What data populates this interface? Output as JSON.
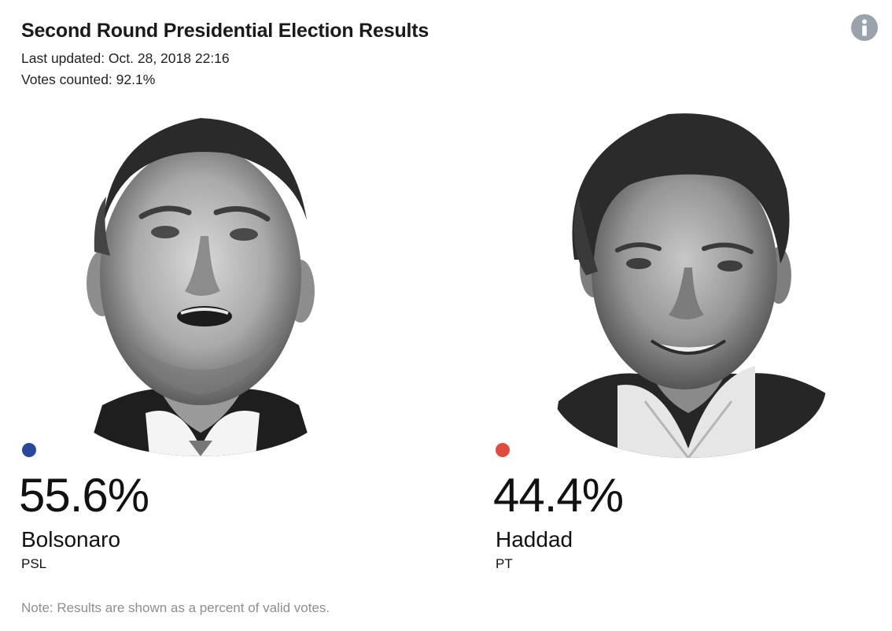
{
  "header": {
    "title": "Second Round Presidential Election Results",
    "last_updated": "Last updated: Oct. 28, 2018 22:16",
    "votes_counted": "Votes counted: 92.1%",
    "info_icon": "info-icon"
  },
  "candidates": [
    {
      "percent": "55.6%",
      "share": 55.6,
      "name": "Bolsonaro",
      "party": "PSL",
      "color": "#28489b",
      "portrait": "candidate-portrait-bolsonaro"
    },
    {
      "percent": "44.4%",
      "share": 44.4,
      "name": "Haddad",
      "party": "PT",
      "color": "#e04b3f",
      "portrait": "candidate-portrait-haddad"
    }
  ],
  "footer": {
    "note": "Note: Results are shown as a percent of valid votes."
  },
  "colors": {
    "info_button": "#9aa3ab",
    "note_text": "#8e8e8e"
  }
}
